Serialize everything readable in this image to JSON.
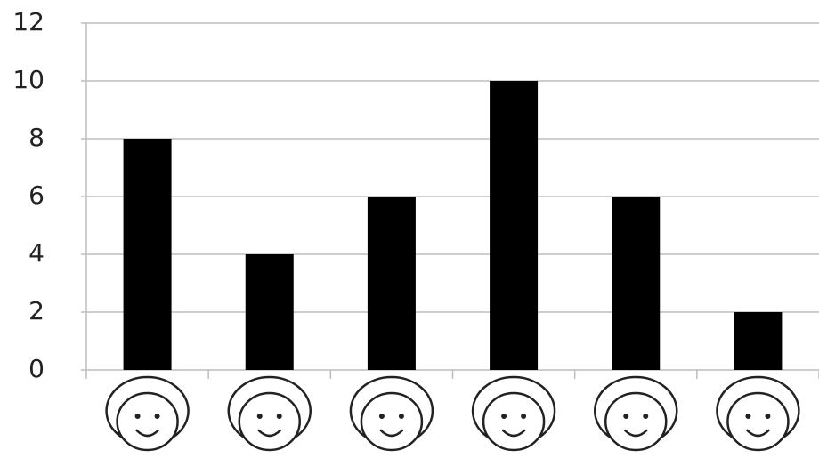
{
  "chart_data": {
    "type": "bar",
    "categories": [
      null,
      null,
      null,
      null,
      null,
      null
    ],
    "values": [
      8,
      4,
      6,
      10,
      6,
      2
    ],
    "color": "#000000",
    "ylim": [
      0,
      12
    ],
    "yticks": [
      0,
      2,
      4,
      6,
      8,
      10,
      12
    ],
    "grid": true
  }
}
